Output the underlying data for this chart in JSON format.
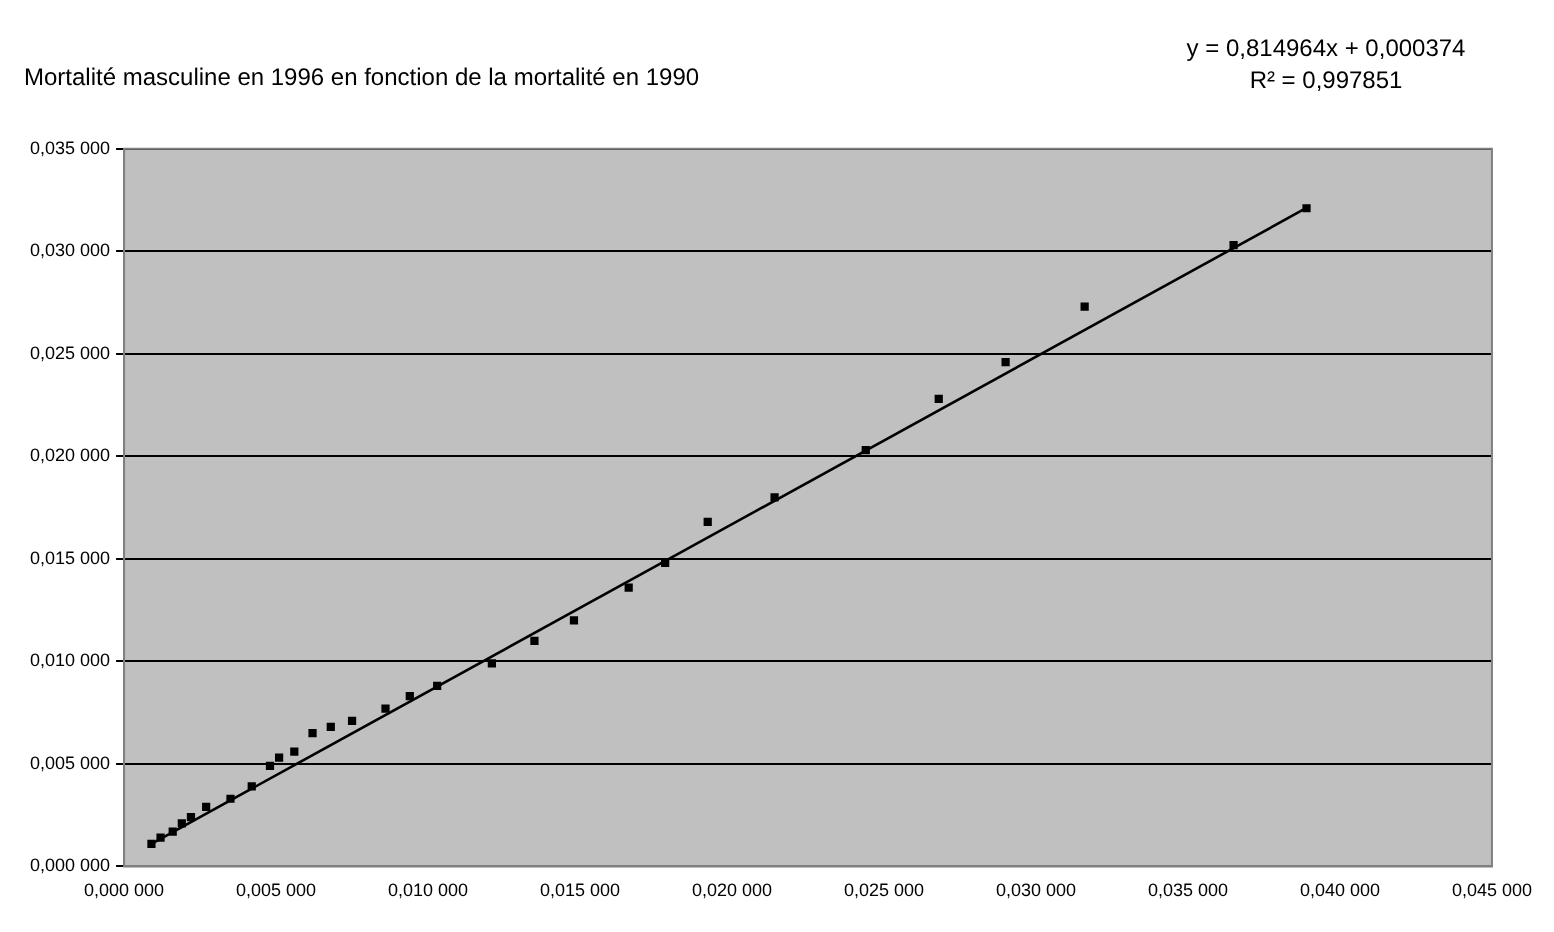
{
  "chart_data": {
    "type": "scatter",
    "title": "Mortalité masculine en 1996 en fonction de la mortalité en 1990",
    "annotations": [
      "y = 0,814964x + 0,000374",
      "R² = 0,997851"
    ],
    "series": [
      {
        "type": "scatter",
        "color": "#000000",
        "marker": "square",
        "x": [
          0.0009,
          0.0012,
          0.0016,
          0.0019,
          0.0022,
          0.0027,
          0.0035,
          0.0042,
          0.0048,
          0.0051,
          0.0056,
          0.0062,
          0.0068,
          0.0075,
          0.0086,
          0.0094,
          0.0103,
          0.0121,
          0.0135,
          0.0148,
          0.0166,
          0.0178,
          0.0192,
          0.0214,
          0.0244,
          0.0268,
          0.029,
          0.0316,
          0.0365,
          0.0389
        ],
        "values": [
          0.0011,
          0.0014,
          0.0017,
          0.0021,
          0.0024,
          0.0029,
          0.0033,
          0.0039,
          0.0049,
          0.0053,
          0.0056,
          0.0065,
          0.0068,
          0.0071,
          0.0077,
          0.0083,
          0.0088,
          0.0099,
          0.011,
          0.012,
          0.0136,
          0.0148,
          0.0168,
          0.018,
          0.0203,
          0.0228,
          0.0246,
          0.0273,
          0.0303,
          0.0321
        ]
      },
      {
        "type": "line",
        "color": "#000000",
        "marker": "none",
        "line_style": "solid",
        "x": [
          0.0009,
          0.039
        ],
        "values": [
          0.0011,
          0.0322
        ]
      }
    ],
    "xlim": [
      0,
      0.045
    ],
    "xticks": [
      {
        "value": 0,
        "label": "0,000 000"
      },
      {
        "value": 0.005,
        "label": "0,005 000"
      },
      {
        "value": 0.01,
        "label": "0,010 000"
      },
      {
        "value": 0.015,
        "label": "0,015 000"
      },
      {
        "value": 0.02,
        "label": "0,020 000"
      },
      {
        "value": 0.025,
        "label": "0,025 000"
      },
      {
        "value": 0.03,
        "label": "0,030 000"
      },
      {
        "value": 0.035,
        "label": "0,035 000"
      },
      {
        "value": 0.04,
        "label": "0,040 000"
      },
      {
        "value": 0.045,
        "label": "0,045 000"
      }
    ],
    "ylim": [
      0,
      0.035
    ],
    "yticks": [
      {
        "value": 0,
        "label": "0,000 000"
      },
      {
        "value": 0.005,
        "label": "0,005 000"
      },
      {
        "value": 0.01,
        "label": "0,010 000"
      },
      {
        "value": 0.015,
        "label": "0,015 000"
      },
      {
        "value": 0.02,
        "label": "0,020 000"
      },
      {
        "value": 0.025,
        "label": "0,025 000"
      },
      {
        "value": 0.03,
        "label": "0,030 000"
      },
      {
        "value": 0.035,
        "label": "0,035 000"
      }
    ],
    "grid": "y",
    "legend": false
  }
}
